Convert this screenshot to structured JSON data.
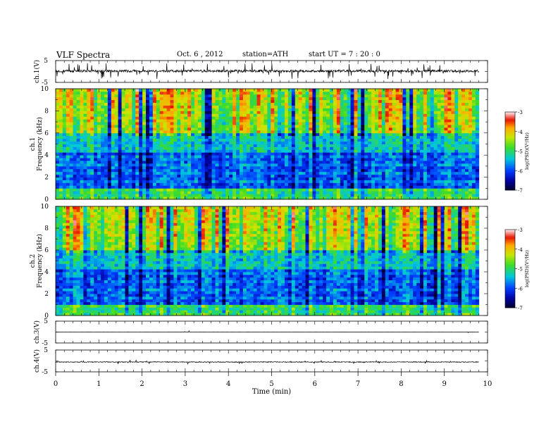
{
  "header": {
    "title": "VLF  Spectra",
    "date": "Oct. 6  , 2012",
    "station": "station=ATH",
    "start": "start  UT  =   7  : 20 : 0"
  },
  "colorbar": {
    "label": "log(PSD)(V²/Hz)",
    "ticks": [
      "-3",
      "-4",
      "-5",
      "-6",
      "-7"
    ]
  },
  "chart_data": [
    {
      "type": "line",
      "panel": "ch1-waveform",
      "ylabel": "ch.1(V)",
      "ylim": [
        -5,
        5
      ],
      "y_ticks": [
        "5",
        "-5"
      ],
      "baseline_V": 0.2,
      "xlim": [
        0,
        10
      ]
    },
    {
      "type": "heatmap",
      "panel": "ch1-spectrogram",
      "ylabel": "ch.1 Frequency  (kHz)",
      "ylim": [
        0,
        10
      ],
      "y_ticks": [
        "0",
        "2",
        "4",
        "6",
        "8",
        "10"
      ],
      "xlim": [
        0,
        10
      ],
      "data_extent_min": 9.8,
      "z_range": [
        -7,
        -3
      ]
    },
    {
      "type": "heatmap",
      "panel": "ch2-spectrogram",
      "ylabel": "ch.2 Frequency  (kHz)",
      "ylim": [
        0,
        10
      ],
      "y_ticks": [
        "0",
        "2",
        "4",
        "6",
        "8",
        "10"
      ],
      "xlim": [
        0,
        10
      ],
      "data_extent_min": 9.8,
      "z_range": [
        -7,
        -3
      ]
    },
    {
      "type": "line",
      "panel": "ch3-waveform",
      "ylabel": "ch.3(V)",
      "ylim": [
        -5,
        5
      ],
      "y_ticks": [
        "5",
        "-5"
      ],
      "baseline_V": 0.0
    },
    {
      "type": "line",
      "panel": "ch4-waveform",
      "ylabel": "ch.4(V)",
      "ylim": [
        -5,
        5
      ],
      "y_ticks": [
        "5",
        "-5"
      ],
      "baseline_V": -0.5
    }
  ],
  "x_axis": {
    "label": "Time  (min)",
    "ticks": [
      "0",
      "1",
      "2",
      "3",
      "4",
      "5",
      "6",
      "7",
      "8",
      "9",
      "10"
    ],
    "xlim": [
      0,
      10
    ]
  }
}
